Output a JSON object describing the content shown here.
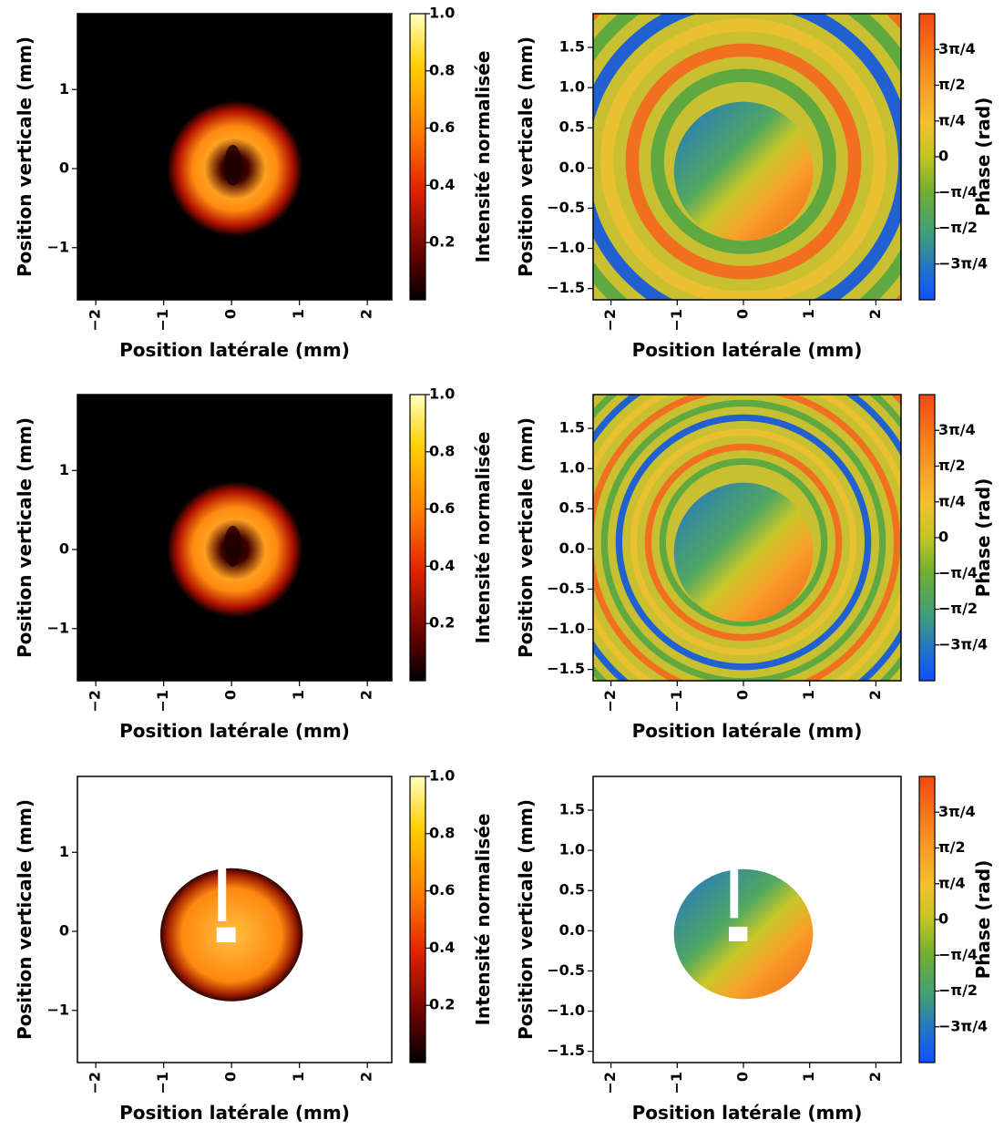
{
  "chart_data": [
    {
      "type": "heatmap",
      "xlabel": "Position latérale (mm)",
      "ylabel": "Position verticale (mm)",
      "xlim": [
        -2.27,
        2.36
      ],
      "ylim": [
        -1.66,
        1.96
      ],
      "xticks": [
        {
          "value": -2,
          "label": "−2"
        },
        {
          "value": -1,
          "label": "−1"
        },
        0,
        1,
        2
      ],
      "yticks": [
        {
          "value": -1,
          "label": "−1"
        },
        0,
        1
      ],
      "colorbar": {
        "label": "Intensité normalisée",
        "colormap": "hot",
        "clim": [
          0,
          1
        ],
        "ticks": [
          0.2,
          0.4,
          0.6,
          0.8,
          {
            "value": 1,
            "label": "1.0"
          }
        ]
      }
    },
    {
      "type": "heatmap",
      "xlabel": "Position latérale (mm)",
      "ylabel": "Position verticale (mm)",
      "xlim": [
        -2.27,
        2.38
      ],
      "ylim": [
        -1.64,
        1.92
      ],
      "xticks": [
        {
          "value": -2,
          "label": "−2"
        },
        {
          "value": -1,
          "label": "−1"
        },
        0,
        1,
        2
      ],
      "yticks": [
        {
          "value": -1.5,
          "label": "−1.5"
        },
        {
          "value": -1,
          "label": "−1.0"
        },
        {
          "value": -0.5,
          "label": "−0.5"
        },
        {
          "value": 0,
          "label": "0.0"
        },
        0.5,
        {
          "value": 1,
          "label": "1.0"
        },
        1.5
      ],
      "colorbar": {
        "label": "Phase (rad)",
        "colormap": "phase",
        "clim": [
          -3.1416,
          3.1416
        ],
        "ticks": [
          {
            "value": -2.3562,
            "label": "−3π/4"
          },
          {
            "value": -1.5708,
            "label": "−π/2"
          },
          {
            "value": -0.7854,
            "label": "−π/4"
          },
          0,
          {
            "value": 0.7854,
            "label": "π/4"
          },
          {
            "value": 1.5708,
            "label": "π/2"
          },
          {
            "value": 2.3562,
            "label": "3π/4"
          }
        ]
      }
    },
    {
      "type": "heatmap",
      "xlabel": "Position latérale (mm)",
      "ylabel": "Position verticale (mm)",
      "xlim": [
        -2.27,
        2.36
      ],
      "ylim": [
        -1.66,
        1.96
      ],
      "xticks": [
        {
          "value": -2,
          "label": "−2"
        },
        {
          "value": -1,
          "label": "−1"
        },
        0,
        1,
        2
      ],
      "yticks": [
        {
          "value": -1,
          "label": "−1"
        },
        0,
        1
      ],
      "colorbar": {
        "label": "Intensité normalisée",
        "colormap": "hot",
        "clim": [
          0,
          1
        ],
        "ticks": [
          0.2,
          0.4,
          0.6,
          0.8,
          {
            "value": 1,
            "label": "1.0"
          }
        ]
      }
    },
    {
      "type": "heatmap",
      "xlabel": "Position latérale (mm)",
      "ylabel": "Position verticale (mm)",
      "xlim": [
        -2.27,
        2.38
      ],
      "ylim": [
        -1.64,
        1.92
      ],
      "xticks": [
        {
          "value": -2,
          "label": "−2"
        },
        {
          "value": -1,
          "label": "−1"
        },
        0,
        1,
        2
      ],
      "yticks": [
        {
          "value": -1.5,
          "label": "−1.5"
        },
        {
          "value": -1,
          "label": "−1.0"
        },
        {
          "value": -0.5,
          "label": "−0.5"
        },
        {
          "value": 0,
          "label": "0.0"
        },
        0.5,
        {
          "value": 1,
          "label": "1.0"
        },
        1.5
      ],
      "colorbar": {
        "label": "Phase (rad)",
        "colormap": "phase",
        "clim": [
          -3.1416,
          3.1416
        ],
        "ticks": [
          {
            "value": -2.3562,
            "label": "−3π/4"
          },
          {
            "value": -1.5708,
            "label": "−π/2"
          },
          {
            "value": -0.7854,
            "label": "−π/4"
          },
          0,
          {
            "value": 0.7854,
            "label": "π/4"
          },
          {
            "value": 1.5708,
            "label": "π/2"
          },
          {
            "value": 2.3562,
            "label": "3π/4"
          }
        ]
      }
    },
    {
      "type": "heatmap",
      "xlabel": "Position latérale (mm)",
      "ylabel": "Position verticale (mm)",
      "xlim": [
        -2.27,
        2.36
      ],
      "ylim": [
        -1.66,
        1.96
      ],
      "xticks": [
        {
          "value": -2,
          "label": "−2"
        },
        {
          "value": -1,
          "label": "−1"
        },
        0,
        1,
        2
      ],
      "yticks": [
        {
          "value": -1,
          "label": "−1"
        },
        0,
        1
      ],
      "colorbar": {
        "label": "Intensité normalisée",
        "colormap": "hot",
        "clim": [
          0,
          1
        ],
        "ticks": [
          0.2,
          0.4,
          0.6,
          0.8,
          {
            "value": 1,
            "label": "1.0"
          }
        ]
      }
    },
    {
      "type": "heatmap",
      "xlabel": "Position latérale (mm)",
      "ylabel": "Position verticale (mm)",
      "xlim": [
        -2.27,
        2.38
      ],
      "ylim": [
        -1.64,
        1.92
      ],
      "xticks": [
        {
          "value": -2,
          "label": "−2"
        },
        {
          "value": -1,
          "label": "−1"
        },
        0,
        1,
        2
      ],
      "yticks": [
        {
          "value": -1.5,
          "label": "−1.5"
        },
        {
          "value": -1,
          "label": "−1.0"
        },
        {
          "value": -0.5,
          "label": "−0.5"
        },
        {
          "value": 0,
          "label": "0.0"
        },
        0.5,
        {
          "value": 1,
          "label": "1.0"
        },
        1.5
      ],
      "colorbar": {
        "label": "Phase (rad)",
        "colormap": "phase",
        "clim": [
          -3.1416,
          3.1416
        ],
        "ticks": [
          {
            "value": -2.3562,
            "label": "−3π/4"
          },
          {
            "value": -1.5708,
            "label": "−π/2"
          },
          {
            "value": -0.7854,
            "label": "−π/4"
          },
          0,
          {
            "value": 0.7854,
            "label": "π/4"
          },
          {
            "value": 1.5708,
            "label": "π/2"
          },
          {
            "value": 2.3562,
            "label": "3π/4"
          }
        ]
      }
    }
  ]
}
